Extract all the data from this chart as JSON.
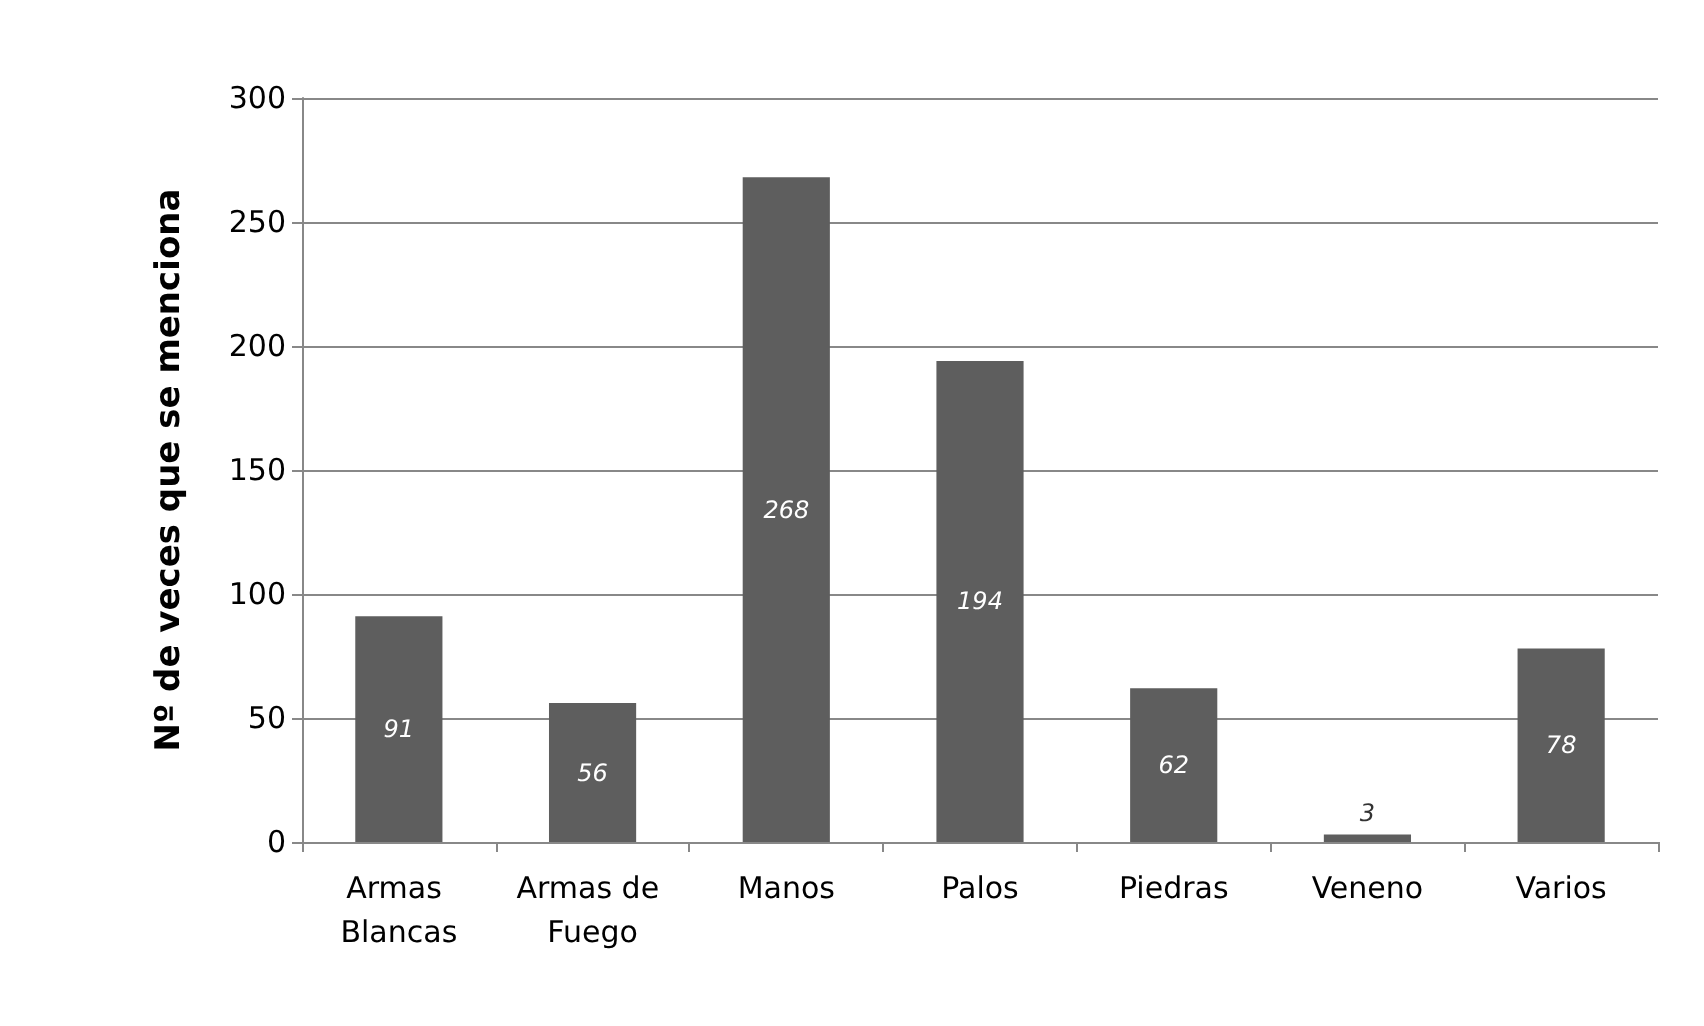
{
  "chart_data": {
    "type": "bar",
    "ylabel": "Nº de veces que se menciona",
    "categories": [
      "Armas Blancas",
      "Armas de Fuego",
      "Manos",
      "Palos",
      "Piedras",
      "Veneno",
      "Varios"
    ],
    "values": [
      91,
      56,
      268,
      194,
      62,
      3,
      78
    ],
    "color": "#5e5e5e",
    "ylim": [
      0,
      300
    ],
    "yticks": [
      0,
      50,
      100,
      150,
      200,
      250,
      300
    ],
    "grid": "y",
    "data_labels": true
  }
}
